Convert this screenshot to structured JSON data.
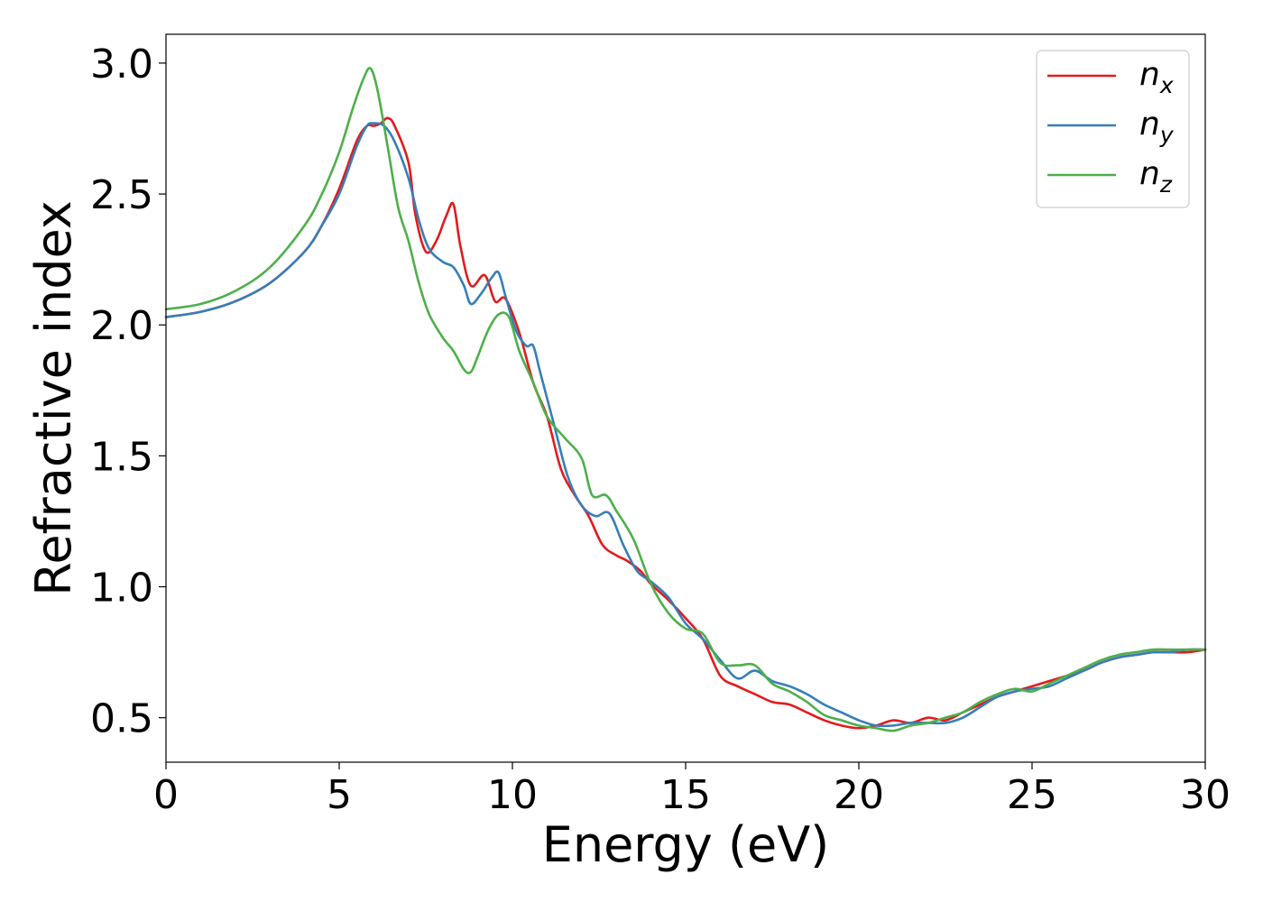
{
  "chart_data": {
    "type": "line",
    "title": "",
    "xlabel": "Energy (eV)",
    "ylabel": "Refractive index",
    "xlim": [
      0,
      30
    ],
    "ylim": [
      0.33,
      3.11
    ],
    "xticks": [
      0,
      5,
      10,
      15,
      20,
      25,
      30
    ],
    "xtick_labels": [
      "0",
      "5",
      "10",
      "15",
      "20",
      "25",
      "30"
    ],
    "yticks": [
      0.5,
      1.0,
      1.5,
      2.0,
      2.5,
      3.0
    ],
    "ytick_labels": [
      "0.5",
      "1.0",
      "1.5",
      "2.0",
      "2.5",
      "3.0"
    ],
    "grid": false,
    "legend_position": "top-right",
    "series": [
      {
        "name": "n",
        "subscript": "x",
        "color": "#e41a1c",
        "x": [
          0,
          1,
          2,
          3,
          4,
          4.5,
          5,
          5.5,
          5.8,
          6.0,
          6.2,
          6.4,
          6.6,
          7.0,
          7.2,
          7.5,
          7.8,
          8.1,
          8.3,
          8.5,
          8.8,
          9.2,
          9.5,
          9.8,
          10.2,
          10.6,
          11.0,
          11.4,
          11.8,
          12.2,
          12.6,
          13.0,
          13.3,
          13.7,
          14.0,
          14.5,
          15.0,
          15.5,
          16.0,
          16.5,
          17.0,
          17.5,
          18.0,
          18.5,
          19.0,
          19.5,
          20.0,
          20.5,
          21.0,
          21.5,
          22.0,
          22.5,
          23.0,
          23.5,
          24.0,
          24.5,
          25.0,
          25.5,
          26.0,
          26.5,
          27.0,
          27.5,
          28.0,
          28.5,
          29.0,
          29.5,
          30.0
        ],
        "y": [
          2.03,
          2.05,
          2.09,
          2.16,
          2.28,
          2.38,
          2.52,
          2.7,
          2.76,
          2.76,
          2.77,
          2.79,
          2.76,
          2.62,
          2.42,
          2.28,
          2.32,
          2.42,
          2.46,
          2.3,
          2.15,
          2.19,
          2.09,
          2.1,
          1.97,
          1.78,
          1.65,
          1.45,
          1.35,
          1.27,
          1.16,
          1.12,
          1.1,
          1.06,
          1.01,
          0.95,
          0.88,
          0.8,
          0.66,
          0.62,
          0.59,
          0.56,
          0.55,
          0.52,
          0.49,
          0.47,
          0.46,
          0.47,
          0.49,
          0.48,
          0.5,
          0.49,
          0.52,
          0.55,
          0.58,
          0.6,
          0.62,
          0.64,
          0.66,
          0.68,
          0.71,
          0.73,
          0.74,
          0.75,
          0.75,
          0.75,
          0.76
        ]
      },
      {
        "name": "n",
        "subscript": "y",
        "color": "#377eb8",
        "x": [
          0,
          1,
          2,
          3,
          4,
          4.5,
          5,
          5.5,
          5.8,
          6.0,
          6.3,
          6.6,
          7.0,
          7.3,
          7.6,
          8.0,
          8.3,
          8.6,
          8.8,
          9.1,
          9.4,
          9.6,
          9.8,
          10.1,
          10.4,
          10.6,
          10.8,
          11.2,
          11.6,
          12.0,
          12.4,
          12.8,
          13.2,
          13.6,
          14.0,
          14.5,
          15.0,
          15.5,
          16.0,
          16.5,
          17.0,
          17.5,
          18.0,
          18.5,
          19.0,
          19.5,
          20.0,
          20.5,
          21.0,
          21.5,
          22.0,
          22.5,
          23.0,
          23.5,
          24.0,
          24.5,
          25.0,
          25.5,
          26.0,
          26.5,
          27.0,
          27.5,
          28.0,
          28.5,
          29.0,
          29.5,
          30.0
        ],
        "y": [
          2.03,
          2.05,
          2.09,
          2.16,
          2.28,
          2.38,
          2.5,
          2.68,
          2.76,
          2.77,
          2.76,
          2.7,
          2.56,
          2.4,
          2.29,
          2.24,
          2.22,
          2.15,
          2.08,
          2.12,
          2.18,
          2.2,
          2.11,
          1.98,
          1.92,
          1.92,
          1.82,
          1.62,
          1.42,
          1.31,
          1.27,
          1.28,
          1.16,
          1.06,
          1.02,
          0.96,
          0.86,
          0.8,
          0.72,
          0.65,
          0.68,
          0.64,
          0.62,
          0.59,
          0.55,
          0.52,
          0.49,
          0.47,
          0.47,
          0.48,
          0.48,
          0.48,
          0.5,
          0.54,
          0.58,
          0.6,
          0.61,
          0.62,
          0.65,
          0.68,
          0.71,
          0.73,
          0.74,
          0.75,
          0.75,
          0.76,
          0.76
        ]
      },
      {
        "name": "n",
        "subscript": "z",
        "color": "#4daf4a",
        "x": [
          0,
          1,
          2,
          3,
          4,
          4.5,
          5,
          5.4,
          5.7,
          5.9,
          6.1,
          6.4,
          6.7,
          7.0,
          7.3,
          7.6,
          8.0,
          8.3,
          8.6,
          8.8,
          9.0,
          9.3,
          9.6,
          9.9,
          10.2,
          10.6,
          11.0,
          11.5,
          12.0,
          12.3,
          12.7,
          13.0,
          13.5,
          14.0,
          14.5,
          15.0,
          15.5,
          16.0,
          16.5,
          17.0,
          17.5,
          18.0,
          18.5,
          19.0,
          19.5,
          20.0,
          20.5,
          21.0,
          21.5,
          22.0,
          22.5,
          23.0,
          23.5,
          24.0,
          24.5,
          25.0,
          25.5,
          26.0,
          26.5,
          27.0,
          27.5,
          28.0,
          28.5,
          29.0,
          29.5,
          30.0
        ],
        "y": [
          2.06,
          2.08,
          2.13,
          2.22,
          2.38,
          2.5,
          2.66,
          2.83,
          2.94,
          2.98,
          2.9,
          2.68,
          2.45,
          2.32,
          2.16,
          2.04,
          1.95,
          1.9,
          1.83,
          1.82,
          1.88,
          1.98,
          2.04,
          2.03,
          1.9,
          1.78,
          1.65,
          1.57,
          1.49,
          1.35,
          1.35,
          1.29,
          1.18,
          1.01,
          0.9,
          0.84,
          0.82,
          0.71,
          0.7,
          0.7,
          0.63,
          0.6,
          0.56,
          0.51,
          0.49,
          0.47,
          0.46,
          0.45,
          0.47,
          0.48,
          0.5,
          0.52,
          0.56,
          0.59,
          0.61,
          0.6,
          0.63,
          0.66,
          0.69,
          0.72,
          0.74,
          0.75,
          0.76,
          0.76,
          0.76,
          0.76
        ]
      }
    ]
  }
}
